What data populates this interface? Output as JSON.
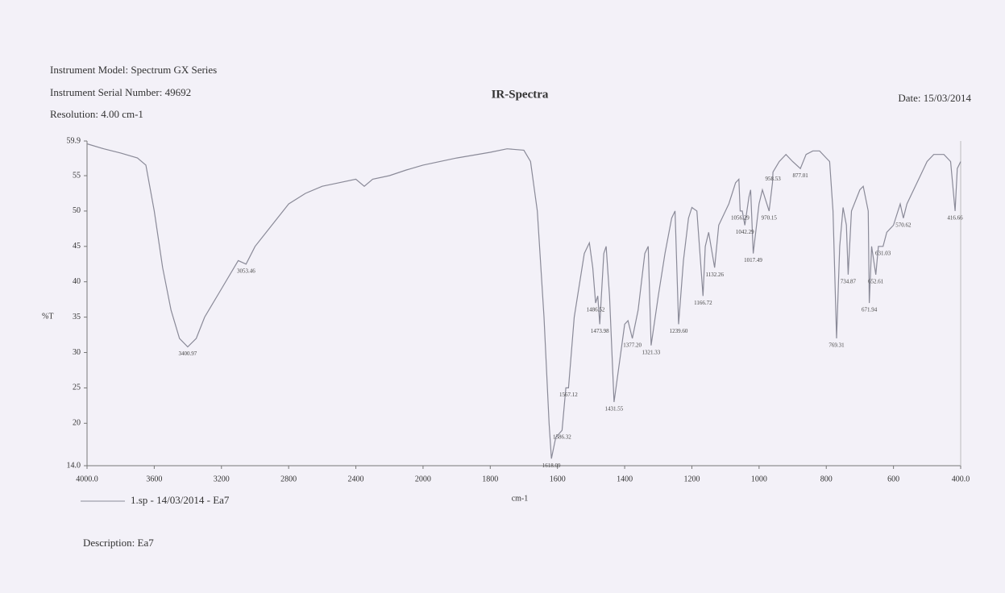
{
  "header": {
    "model": "Instrument Model: Spectrum GX Series",
    "serial": "Instrument Serial Number: 49692",
    "resolution": "Resolution: 4.00 cm-1",
    "date": "Date: 15/03/2014"
  },
  "description": "Description: Ea7",
  "chart_data": {
    "type": "line",
    "title": "IR-Spectra",
    "x_label": "cm-1",
    "y_label": "%T",
    "xlim": [
      4000,
      400
    ],
    "xticks": [
      {
        "value": 4000,
        "label": "4000.0"
      },
      3600,
      3200,
      2800,
      2400,
      2000,
      1800,
      1600,
      1400,
      1200,
      1000,
      800,
      600,
      {
        "value": 400,
        "label": "400.0"
      }
    ],
    "ylim": [
      14,
      59.9
    ],
    "yticks": [
      {
        "value": 14,
        "label": "14.0"
      },
      20,
      25,
      30,
      35,
      40,
      45,
      50,
      55,
      59.9
    ],
    "x": [
      4000,
      3900,
      3800,
      3700,
      3650,
      3600,
      3550,
      3500,
      3450,
      3400.97,
      3350,
      3300,
      3200,
      3100,
      3053.46,
      3000,
      2900,
      2800,
      2700,
      2600,
      2500,
      2400,
      2350,
      2300,
      2200,
      2100,
      2000,
      1900,
      1800,
      1750,
      1700,
      1680,
      1660,
      1640,
      1625,
      1618.09,
      1605,
      1586.32,
      1575,
      1567.12,
      1550,
      1520,
      1505,
      1495,
      1486.52,
      1480,
      1473.98,
      1462,
      1455,
      1445,
      1431.55,
      1420,
      1400,
      1390,
      1377.2,
      1360,
      1340,
      1330,
      1321.33,
      1300,
      1280,
      1260,
      1250,
      1239.6,
      1225,
      1210,
      1200,
      1185,
      1166.72,
      1160,
      1150,
      1132.26,
      1120,
      1090,
      1070,
      1060,
      1056.29,
      1050,
      1042.29,
      1030,
      1025,
      1017.49,
      1000,
      990,
      970.15,
      960,
      958.53,
      940,
      920,
      900,
      877.01,
      860,
      840,
      820,
      800,
      790,
      780,
      769.31,
      760,
      750,
      740,
      734.87,
      725,
      700,
      690,
      675,
      671.94,
      665,
      652.61,
      645,
      631.03,
      620,
      600,
      580,
      570.62,
      560,
      540,
      520,
      500,
      480,
      450,
      430,
      416.66,
      410,
      400
    ],
    "series": [
      {
        "name": "1.sp - 14/03/2014 - Ea7",
        "color": "#8a8a98",
        "values": [
          59.5,
          58.8,
          58.2,
          57.5,
          56.5,
          50,
          42,
          36,
          32,
          30.8,
          32,
          35,
          39,
          43,
          42.5,
          45,
          48,
          51,
          52.5,
          53.5,
          54,
          54.5,
          53.5,
          54.5,
          55,
          55.8,
          56.5,
          57.5,
          58.3,
          58.8,
          58.6,
          57,
          50,
          35,
          20,
          15,
          18,
          19,
          25,
          25,
          35,
          44,
          45.5,
          42,
          37,
          38,
          34,
          44,
          45,
          38,
          23,
          27,
          34,
          34.5,
          32,
          36,
          44,
          45,
          31,
          38,
          44,
          49,
          50,
          34,
          43,
          49,
          50.5,
          50,
          38,
          45,
          47,
          42,
          48,
          51,
          54,
          54.5,
          50,
          50,
          48,
          52,
          53,
          44,
          51,
          53,
          50,
          54,
          55.5,
          57,
          58,
          57,
          56,
          58,
          58.5,
          58.5,
          57.5,
          57,
          50,
          32,
          45,
          50.5,
          48,
          41,
          50,
          53,
          53.5,
          50,
          37,
          45,
          41,
          45,
          45,
          47,
          48,
          51,
          49,
          51,
          53,
          55,
          57,
          58,
          58,
          57,
          50,
          56,
          57
        ]
      }
    ],
    "peaks": [
      {
        "x": 3400.97,
        "y": 30.8
      },
      {
        "x": 3053.46,
        "y": 42.5
      },
      {
        "x": 1618.09,
        "y": 15
      },
      {
        "x": 1586.32,
        "y": 19
      },
      {
        "x": 1567.12,
        "y": 25
      },
      {
        "x": 1486.52,
        "y": 37
      },
      {
        "x": 1473.98,
        "y": 34
      },
      {
        "x": 1431.55,
        "y": 23
      },
      {
        "x": 1377.2,
        "y": 32,
        "label": "1377.20"
      },
      {
        "x": 1321.33,
        "y": 31
      },
      {
        "x": 1239.6,
        "y": 34,
        "label": "1239.60"
      },
      {
        "x": 1166.72,
        "y": 38
      },
      {
        "x": 1132.26,
        "y": 42
      },
      {
        "x": 1056.29,
        "y": 50
      },
      {
        "x": 1042.29,
        "y": 48
      },
      {
        "x": 1017.49,
        "y": 44
      },
      {
        "x": 970.15,
        "y": 50
      },
      {
        "x": 958.53,
        "y": 55.5
      },
      {
        "x": 877.01,
        "y": 56
      },
      {
        "x": 769.31,
        "y": 32
      },
      {
        "x": 734.87,
        "y": 41
      },
      {
        "x": 671.94,
        "y": 37
      },
      {
        "x": 652.61,
        "y": 41
      },
      {
        "x": 631.03,
        "y": 45
      },
      {
        "x": 570.62,
        "y": 49
      },
      {
        "x": 416.66,
        "y": 50
      }
    ]
  }
}
